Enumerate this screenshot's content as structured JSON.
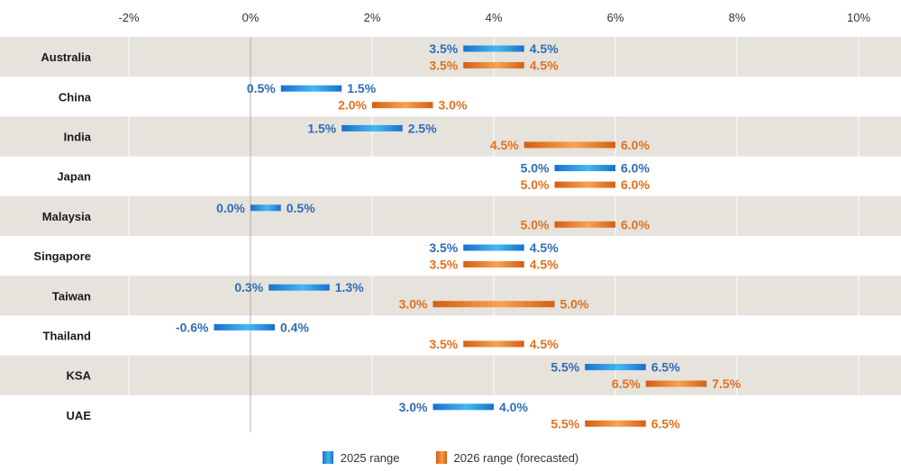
{
  "chart_data": {
    "type": "range-bar",
    "x_ticks": [
      "-2%",
      "0%",
      "2%",
      "4%",
      "6%",
      "8%",
      "10%"
    ],
    "xlim": [
      -2,
      10
    ],
    "categories": [
      "Australia",
      "China",
      "India",
      "Japan",
      "Malaysia",
      "Singapore",
      "Taiwan",
      "Thailand",
      "KSA",
      "UAE"
    ],
    "series": [
      {
        "name": "2025 range",
        "color": "#2f6db5",
        "bar_color": "#1f8fe0",
        "low": [
          3.5,
          0.5,
          1.5,
          5.0,
          0.0,
          3.5,
          0.3,
          -0.6,
          5.5,
          3.0
        ],
        "high": [
          4.5,
          1.5,
          2.5,
          6.0,
          0.5,
          4.5,
          1.3,
          0.4,
          6.5,
          4.0
        ],
        "low_labels": [
          "3.5%",
          "0.5%",
          "1.5%",
          "5.0%",
          "0.0%",
          "3.5%",
          "0.3%",
          "-0.6%",
          "5.5%",
          "3.0%"
        ],
        "high_labels": [
          "4.5%",
          "1.5%",
          "2.5%",
          "6.0%",
          "0.5%",
          "4.5%",
          "1.3%",
          "0.4%",
          "6.5%",
          "4.0%"
        ]
      },
      {
        "name": "2026 range (forecasted)",
        "color": "#e2711d",
        "bar_color": "#e8751f",
        "low": [
          3.5,
          2.0,
          4.5,
          5.0,
          5.0,
          3.5,
          3.0,
          3.5,
          6.5,
          5.5
        ],
        "high": [
          4.5,
          3.0,
          6.0,
          6.0,
          6.0,
          4.5,
          5.0,
          4.5,
          7.5,
          6.5
        ],
        "low_labels": [
          "3.5%",
          "2.0%",
          "4.5%",
          "5.0%",
          "5.0%",
          "3.5%",
          "3.0%",
          "3.5%",
          "6.5%",
          "5.5%"
        ],
        "high_labels": [
          "4.5%",
          "3.0%",
          "6.0%",
          "6.0%",
          "6.0%",
          "4.5%",
          "5.0%",
          "4.5%",
          "7.5%",
          "6.5%"
        ]
      }
    ],
    "stripe_color": "#e6e2dc",
    "grid": true,
    "legend_position": "bottom-center"
  }
}
